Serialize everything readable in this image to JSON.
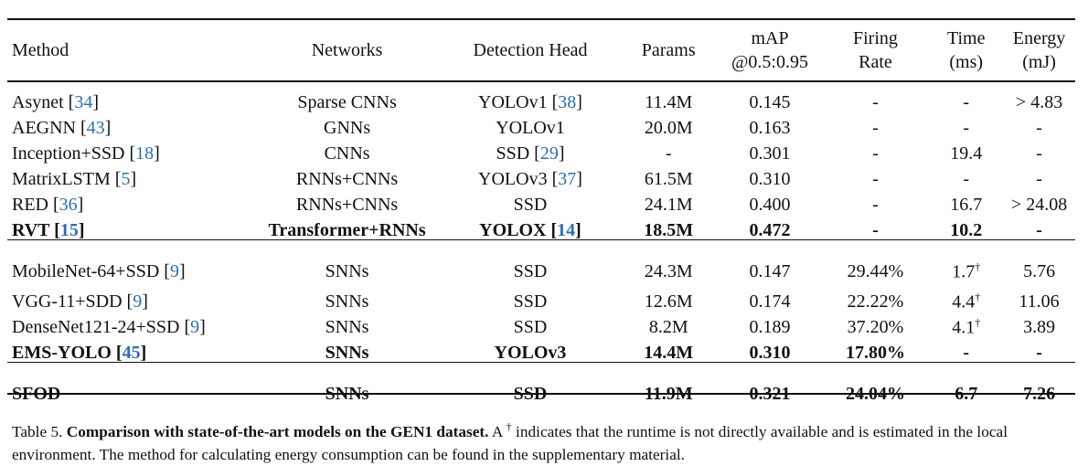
{
  "headers": [
    "Method",
    "Networks",
    "Detection Head",
    "Params",
    "mAP\n@0.5:0.95",
    "Firing\nRate",
    "Time\n(ms)",
    "Energy\n(mJ)"
  ],
  "groups": [
    [
      {
        "bold": false,
        "cells": [
          {
            "t": "Asynet ",
            "ref": "34"
          },
          {
            "t": "Sparse CNNs"
          },
          {
            "t": "YOLOv1 ",
            "ref": "38"
          },
          {
            "t": "11.4M"
          },
          {
            "t": "0.145"
          },
          {
            "t": "-"
          },
          {
            "t": "-"
          },
          {
            "t": "> 4.83"
          }
        ]
      },
      {
        "bold": false,
        "cells": [
          {
            "t": "AEGNN ",
            "ref": "43"
          },
          {
            "t": "GNNs"
          },
          {
            "t": "YOLOv1"
          },
          {
            "t": "20.0M"
          },
          {
            "t": "0.163"
          },
          {
            "t": "-"
          },
          {
            "t": "-"
          },
          {
            "t": "-"
          }
        ]
      },
      {
        "bold": false,
        "cells": [
          {
            "t": "Inception+SSD ",
            "ref": "18"
          },
          {
            "t": "CNNs"
          },
          {
            "t": "SSD ",
            "ref": "29"
          },
          {
            "t": "-"
          },
          {
            "t": "0.301"
          },
          {
            "t": "-"
          },
          {
            "t": "19.4"
          },
          {
            "t": "-"
          }
        ]
      },
      {
        "bold": false,
        "cells": [
          {
            "t": "MatrixLSTM ",
            "ref": "5"
          },
          {
            "t": "RNNs+CNNs"
          },
          {
            "t": "YOLOv3 ",
            "ref": "37"
          },
          {
            "t": "61.5M"
          },
          {
            "t": "0.310"
          },
          {
            "t": "-"
          },
          {
            "t": "-"
          },
          {
            "t": "-"
          }
        ]
      },
      {
        "bold": false,
        "cells": [
          {
            "t": "RED ",
            "ref": "36"
          },
          {
            "t": "RNNs+CNNs"
          },
          {
            "t": "SSD"
          },
          {
            "t": "24.1M"
          },
          {
            "t": "0.400"
          },
          {
            "t": "-"
          },
          {
            "t": "16.7"
          },
          {
            "t": "> 24.08"
          }
        ]
      },
      {
        "bold": true,
        "cells": [
          {
            "t": "RVT ",
            "ref": "15"
          },
          {
            "t": "Transformer+RNNs"
          },
          {
            "t": "YOLOX ",
            "ref": "14"
          },
          {
            "t": "18.5M"
          },
          {
            "t": "0.472"
          },
          {
            "t": "-"
          },
          {
            "t": "10.2"
          },
          {
            "t": "-"
          }
        ]
      }
    ],
    [
      {
        "bold": false,
        "cells": [
          {
            "t": "MobileNet-64+SSD ",
            "ref": "9"
          },
          {
            "t": "SNNs"
          },
          {
            "t": "SSD"
          },
          {
            "t": "24.3M"
          },
          {
            "t": "0.147"
          },
          {
            "t": "29.44%"
          },
          {
            "t": "1.7",
            "sup": "†"
          },
          {
            "t": "5.76"
          }
        ]
      },
      {
        "bold": false,
        "cells": [
          {
            "t": "VGG-11+SDD ",
            "ref": "9"
          },
          {
            "t": "SNNs"
          },
          {
            "t": "SSD"
          },
          {
            "t": "12.6M"
          },
          {
            "t": "0.174"
          },
          {
            "t": "22.22%"
          },
          {
            "t": "4.4",
            "sup": "†"
          },
          {
            "t": "11.06"
          }
        ]
      },
      {
        "bold": false,
        "cells": [
          {
            "t": "DenseNet121-24+SSD ",
            "ref": "9"
          },
          {
            "t": "SNNs"
          },
          {
            "t": "SSD"
          },
          {
            "t": "8.2M"
          },
          {
            "t": "0.189"
          },
          {
            "t": "37.20%"
          },
          {
            "t": "4.1",
            "sup": "†"
          },
          {
            "t": "3.89"
          }
        ]
      },
      {
        "bold": true,
        "cells": [
          {
            "t": "EMS-YOLO ",
            "ref": "45"
          },
          {
            "t": "SNNs"
          },
          {
            "t": "YOLOv3"
          },
          {
            "t": "14.4M"
          },
          {
            "t": "0.310"
          },
          {
            "t": "17.80%"
          },
          {
            "t": "-"
          },
          {
            "t": "-"
          }
        ]
      }
    ],
    [
      {
        "bold": true,
        "cells": [
          {
            "t": "SFOD"
          },
          {
            "t": "SNNs"
          },
          {
            "t": "SSD"
          },
          {
            "t": "11.9M"
          },
          {
            "t": "0.321"
          },
          {
            "t": "24.04%"
          },
          {
            "t": "6.7"
          },
          {
            "t": "7.26"
          }
        ]
      }
    ]
  ],
  "caption": {
    "label": "Table 5.",
    "title": "Comparison with state-of-the-art models on the GEN1 dataset.",
    "text_a": " A ",
    "dagger": "†",
    "text_b": " indicates that the runtime is not directly available and is estimated in the local environment. The method for calculating energy consumption can be found in the supplementary material."
  }
}
